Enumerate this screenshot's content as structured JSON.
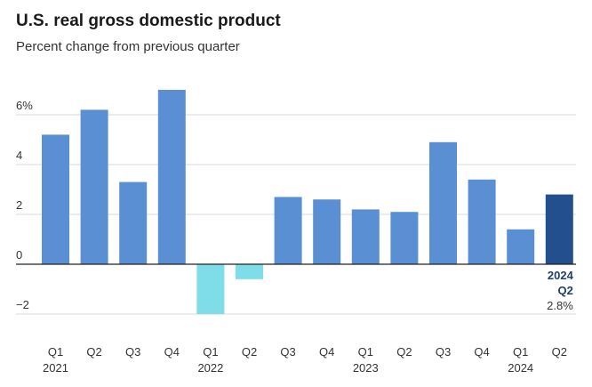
{
  "chart_data": {
    "type": "bar",
    "title": "U.S. real gross domestic product",
    "subtitle": "Percent change from previous quarter",
    "xlabel": "",
    "ylabel": "",
    "ylim": [
      -2.6,
      7
    ],
    "yticks": [
      {
        "value": 6,
        "label": "6%"
      },
      {
        "value": 4,
        "label": "4"
      },
      {
        "value": 2,
        "label": "2"
      },
      {
        "value": 0,
        "label": "0"
      },
      {
        "value": -2,
        "label": "−2"
      }
    ],
    "categories": [
      "Q1",
      "Q2",
      "Q3",
      "Q4",
      "Q1",
      "Q2",
      "Q3",
      "Q4",
      "Q1",
      "Q2",
      "Q3",
      "Q4",
      "Q1",
      "Q2"
    ],
    "years": [
      {
        "label": "2021",
        "index": 0
      },
      {
        "label": "2022",
        "index": 4
      },
      {
        "label": "2023",
        "index": 8
      },
      {
        "label": "2024",
        "index": 12
      }
    ],
    "values": [
      5.2,
      6.2,
      3.3,
      7.0,
      -2.0,
      -0.6,
      2.7,
      2.6,
      2.2,
      2.1,
      4.9,
      3.4,
      1.4,
      2.8
    ],
    "colors": {
      "positive": "#5b8fd4",
      "negative": "#7fdde9",
      "highlight": "#234f8e",
      "grid": "#d9d9d9",
      "zero": "#222222"
    },
    "highlight_index": 13,
    "annotation": {
      "year": "2024",
      "quarter": "Q2",
      "value_label": "2.8%"
    }
  }
}
